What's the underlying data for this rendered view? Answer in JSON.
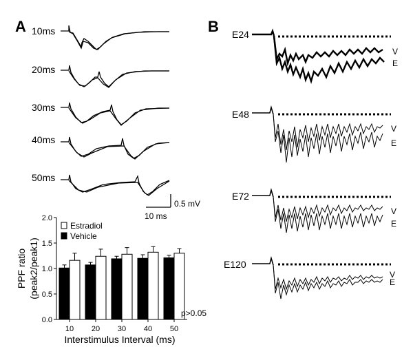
{
  "panel_a": {
    "letter": "A",
    "trace_labels": [
      "10ms",
      "20ms",
      "30ms",
      "40ms",
      "50ms"
    ],
    "scale_bar": {
      "voltage": "0.5 mV",
      "time": "10 ms"
    }
  },
  "panel_b": {
    "letter": "B",
    "trace_labels": [
      "E24",
      "E48",
      "E72",
      "E120"
    ],
    "series_markers": {
      "vehicle": "V",
      "estradiol": "E"
    }
  },
  "chart_data": {
    "type": "bar",
    "title": "",
    "xlabel": "Interstimulus Interval (ms)",
    "ylabel_lines": [
      "PPF ratio",
      "(peak2/peak1)"
    ],
    "categories": [
      "10",
      "20",
      "30",
      "40",
      "50"
    ],
    "ylim": [
      0,
      2.0
    ],
    "yticks": [
      "0.0",
      "0.5",
      "1.0",
      "1.5",
      "2.0"
    ],
    "series": [
      {
        "name": "Vehicle",
        "fill": "#000000",
        "values": [
          1.01,
          1.07,
          1.19,
          1.2,
          1.21
        ],
        "errors": [
          0.06,
          0.05,
          0.05,
          0.07,
          0.05
        ]
      },
      {
        "name": "Estradiol",
        "fill": "#ffffff",
        "values": [
          1.16,
          1.24,
          1.28,
          1.32,
          1.3
        ],
        "errors": [
          0.14,
          0.14,
          0.13,
          0.11,
          0.09
        ]
      }
    ],
    "legend_position": "top-left",
    "annotation": "p>0.05",
    "grid": false
  },
  "colors": {
    "ink": "#000000",
    "background": "#ffffff"
  }
}
